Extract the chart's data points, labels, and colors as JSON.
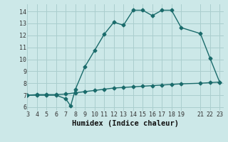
{
  "xlabel": "Humidex (Indice chaleur)",
  "background_color": "#cce8e8",
  "grid_color": "#aacece",
  "line_color": "#1a6b6b",
  "xlim": [
    3,
    23.4
  ],
  "ylim": [
    5.7,
    14.6
  ],
  "xticks": [
    3,
    4,
    5,
    6,
    7,
    8,
    9,
    10,
    11,
    12,
    13,
    14,
    15,
    16,
    17,
    18,
    19,
    21,
    22,
    23
  ],
  "yticks": [
    6,
    7,
    8,
    9,
    10,
    11,
    12,
    13,
    14
  ],
  "series1_x": [
    3,
    4,
    5,
    6,
    7,
    7.5,
    8,
    9,
    10,
    11,
    12,
    13,
    14,
    15,
    16,
    17,
    18,
    19,
    21,
    22,
    23
  ],
  "series1_y": [
    7.0,
    7.0,
    7.0,
    7.0,
    6.7,
    6.1,
    7.5,
    9.4,
    10.75,
    12.1,
    13.1,
    12.85,
    14.1,
    14.1,
    13.65,
    14.1,
    14.1,
    12.65,
    12.15,
    10.1,
    8.1
  ],
  "series2_x": [
    3,
    4,
    5,
    6,
    7,
    8,
    9,
    10,
    11,
    12,
    13,
    14,
    15,
    16,
    17,
    18,
    19,
    21,
    22,
    23
  ],
  "series2_y": [
    7.0,
    7.05,
    7.05,
    7.05,
    7.1,
    7.2,
    7.3,
    7.4,
    7.5,
    7.6,
    7.65,
    7.7,
    7.75,
    7.8,
    7.85,
    7.9,
    7.95,
    8.0,
    8.05,
    8.1
  ],
  "marker_size": 2.5,
  "line_width": 1.0,
  "tick_fontsize": 6,
  "xlabel_fontsize": 7.5
}
